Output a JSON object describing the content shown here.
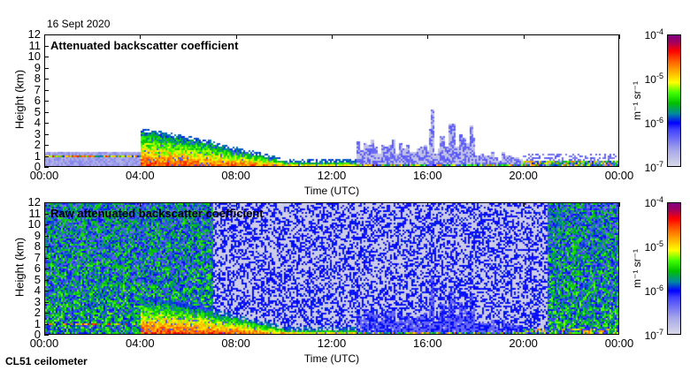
{
  "header": {
    "date": "16 Sept 2020",
    "instrument": "CL51 ceilometer"
  },
  "chart_data": [
    {
      "type": "heatmap",
      "title": "Attenuated backscatter coefficient",
      "xlabel": "Time (UTC)",
      "ylabel": "Height (km)",
      "xticks": [
        "00:00",
        "04:00",
        "08:00",
        "12:00",
        "16:00",
        "20:00",
        "00:00"
      ],
      "xlim": [
        0,
        24
      ],
      "yticks": [
        "0",
        "1",
        "2",
        "3",
        "4",
        "5",
        "6",
        "7",
        "8",
        "9",
        "10",
        "11",
        "12"
      ],
      "ylim": [
        0,
        12
      ],
      "colorbar": {
        "label": "m⁻¹ sr⁻¹",
        "scale": "log",
        "range": [
          1e-07,
          0.0001
        ],
        "ticks": [
          "10",
          "10",
          "10",
          "10"
        ],
        "exponents": [
          "-4",
          "-5",
          "-6",
          "-7"
        ]
      }
    },
    {
      "type": "heatmap",
      "title": "Raw attenuated backscatter coefficient",
      "xlabel": "Time (UTC)",
      "ylabel": "Height (km)",
      "xticks": [
        "00:00",
        "04:00",
        "08:00",
        "12:00",
        "16:00",
        "20:00",
        "00:00"
      ],
      "xlim": [
        0,
        24
      ],
      "yticks": [
        "0",
        "1",
        "2",
        "3",
        "4",
        "5",
        "6",
        "7",
        "8",
        "9",
        "10",
        "11",
        "12"
      ],
      "ylim": [
        0,
        12
      ],
      "colorbar": {
        "label": "m⁻¹ sr⁻¹",
        "scale": "log",
        "range": [
          1e-07,
          0.0001
        ],
        "ticks": [
          "10",
          "10",
          "10",
          "10"
        ],
        "exponents": [
          "-4",
          "-5",
          "-6",
          "-7"
        ]
      }
    }
  ]
}
